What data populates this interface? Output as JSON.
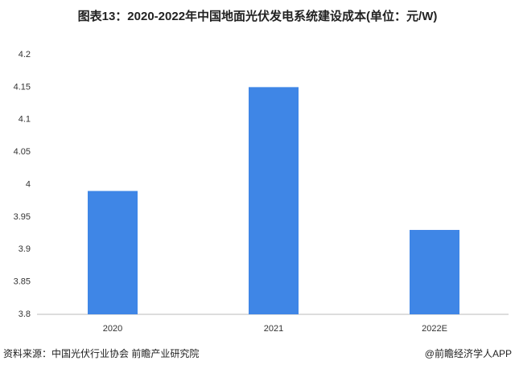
{
  "chart_data": {
    "type": "bar",
    "title": "图表13：2020-2022年中国地面光伏发电系统建设成本(单位：元/W)",
    "categories": [
      "2020",
      "2021",
      "2022E"
    ],
    "values": [
      3.99,
      4.15,
      3.93
    ],
    "color": "#3f86e6",
    "ylim": [
      3.8,
      4.2
    ],
    "yticks": [
      3.8,
      3.85,
      3.9,
      3.95,
      4,
      4.05,
      4.1,
      4.15,
      4.2
    ],
    "grid": false,
    "source": "资料来源：中国光伏行业协会 前瞻产业研究院",
    "credit": "@前瞻经济学人APP"
  }
}
